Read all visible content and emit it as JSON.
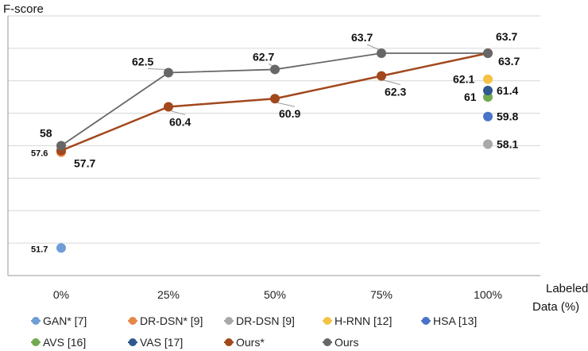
{
  "chart_data": {
    "type": "line",
    "title": "",
    "ylabel": "F-score",
    "xlabel": "Labeled Data (%)",
    "xlabel_lines": [
      "Labeled",
      "Data (%)"
    ],
    "categories": [
      "0%",
      "25%",
      "50%",
      "75%",
      "100%"
    ],
    "ylim": [
      50,
      66
    ],
    "grid": true,
    "legend_position": "bottom",
    "series": [
      {
        "name": "GAN* [7]",
        "color": "#6d9ed6",
        "points": [
          {
            "x": "0%",
            "y": 51.7,
            "label": "51.7"
          }
        ]
      },
      {
        "name": "DR-DSN* [9]",
        "color": "#e8874a",
        "points": [
          {
            "x": "0%",
            "y": 57.6,
            "label": "57.6"
          }
        ]
      },
      {
        "name": "DR-DSN [9]",
        "color": "#a9a9a9",
        "points": [
          {
            "x": "100%",
            "y": 58.1,
            "label": "58.1"
          }
        ]
      },
      {
        "name": "H-RNN [12]",
        "color": "#f5c243",
        "points": [
          {
            "x": "100%",
            "y": 62.1,
            "label": "62.1"
          }
        ]
      },
      {
        "name": "HSA [13]",
        "color": "#4a72c8",
        "points": [
          {
            "x": "100%",
            "y": 59.8,
            "label": "59.8"
          }
        ]
      },
      {
        "name": "AVS [16]",
        "color": "#72a850",
        "points": [
          {
            "x": "100%",
            "y": 61.0,
            "label": "61"
          }
        ]
      },
      {
        "name": "VAS [17]",
        "color": "#2f5890",
        "points": [
          {
            "x": "100%",
            "y": 61.4,
            "label": "61.4"
          }
        ]
      },
      {
        "name": "Ours*",
        "color": "#a2481d",
        "line": true,
        "points": [
          {
            "x": "0%",
            "y": 57.7,
            "label": "57.7"
          },
          {
            "x": "25%",
            "y": 60.4,
            "label": "60.4"
          },
          {
            "x": "50%",
            "y": 60.9,
            "label": "60.9"
          },
          {
            "x": "75%",
            "y": 62.3,
            "label": "62.3"
          },
          {
            "x": "100%",
            "y": 63.7,
            "label": "63.7"
          }
        ]
      },
      {
        "name": "Ours",
        "color": "#676767",
        "line": true,
        "points": [
          {
            "x": "0%",
            "y": 58.0,
            "label": "58"
          },
          {
            "x": "25%",
            "y": 62.5,
            "label": "62.5"
          },
          {
            "x": "50%",
            "y": 62.7,
            "label": "62.7"
          },
          {
            "x": "75%",
            "y": 63.7,
            "label": "63.7"
          },
          {
            "x": "100%",
            "y": 63.7,
            "label": "63.7"
          }
        ]
      }
    ]
  }
}
